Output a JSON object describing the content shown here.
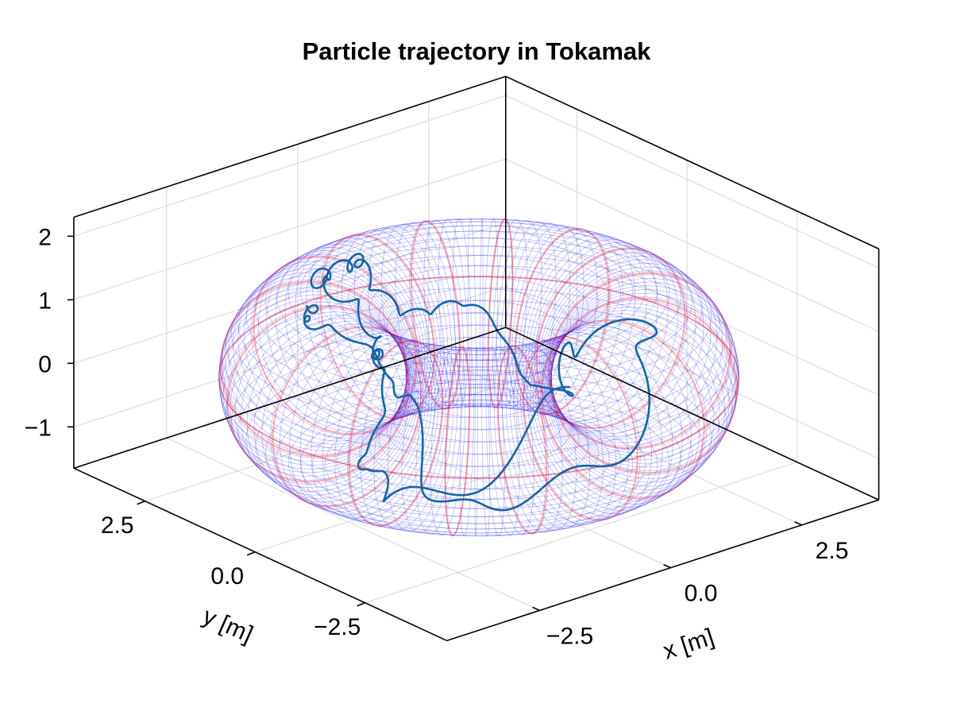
{
  "chart_data": {
    "type": "3d-line-surface",
    "title": "Particle trajectory in Tokamak",
    "xlabel": "x [m]",
    "ylabel": "y [m]",
    "zlabel": "",
    "xlim": [
      -4.27,
      3.97
    ],
    "ylim": [
      -4.36,
      4.12
    ],
    "zlim": [
      -1.65,
      2.3
    ],
    "xticks": [
      {
        "v": -2.5,
        "label": "−2.5"
      },
      {
        "v": 0,
        "label": "0.0"
      },
      {
        "v": 2.5,
        "label": "2.5"
      }
    ],
    "yticks": [
      {
        "v": 2.5,
        "label": "2.5"
      },
      {
        "v": 0,
        "label": "0.0"
      },
      {
        "v": -2.5,
        "label": "−2.5"
      }
    ],
    "zticks": [
      {
        "v": 2,
        "label": "2"
      },
      {
        "v": 1,
        "label": "1"
      },
      {
        "v": 0,
        "label": "0"
      },
      {
        "v": -1,
        "label": "−1"
      }
    ],
    "grid": true,
    "torus": {
      "major_radius": 2.43,
      "minor_radius": 1.37,
      "mesh_color": "#0000ff",
      "field_line_color": "#ff0000",
      "poloidal_lines": 16
    },
    "trajectory": {
      "color": "#1565a6",
      "toroidal_turns": 1.35,
      "radius": 1.0,
      "poloidal_pitch": 2.2,
      "gyro_radius": 0.12
    }
  }
}
